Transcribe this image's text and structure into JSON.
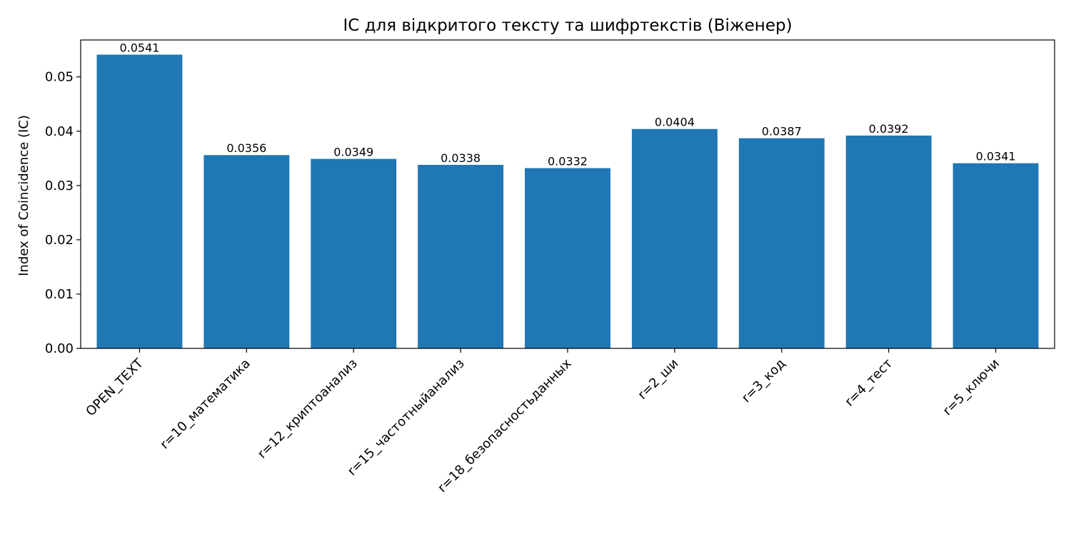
{
  "chart_data": {
    "type": "bar",
    "title": "IC для відкритого тексту та шифртекстів (Віженер)",
    "xlabel": "",
    "ylabel": "Index of Coincidence (IC)",
    "categories": [
      "OPEN_TEXT",
      "r=10_математика",
      "r=12_криптоанализ",
      "r=15_частотныйанализ",
      "r=18_безопасностьданных",
      "r=2_ши",
      "r=3_код",
      "r=4_тест",
      "r=5_ключи"
    ],
    "values": [
      0.0541,
      0.0356,
      0.0349,
      0.0338,
      0.0332,
      0.0404,
      0.0387,
      0.0392,
      0.0341
    ],
    "data_labels": [
      "0.0541",
      "0.0356",
      "0.0349",
      "0.0338",
      "0.0332",
      "0.0404",
      "0.0387",
      "0.0392",
      "0.0341"
    ],
    "ylim": [
      0,
      0.0568
    ],
    "yticks": [
      0.0,
      0.01,
      0.02,
      0.03,
      0.04,
      0.05
    ],
    "ytick_labels": [
      "0.00",
      "0.01",
      "0.02",
      "0.03",
      "0.04",
      "0.05"
    ],
    "grid": false,
    "colors": {
      "bar": "#1f77b4",
      "axis": "#000000"
    }
  }
}
